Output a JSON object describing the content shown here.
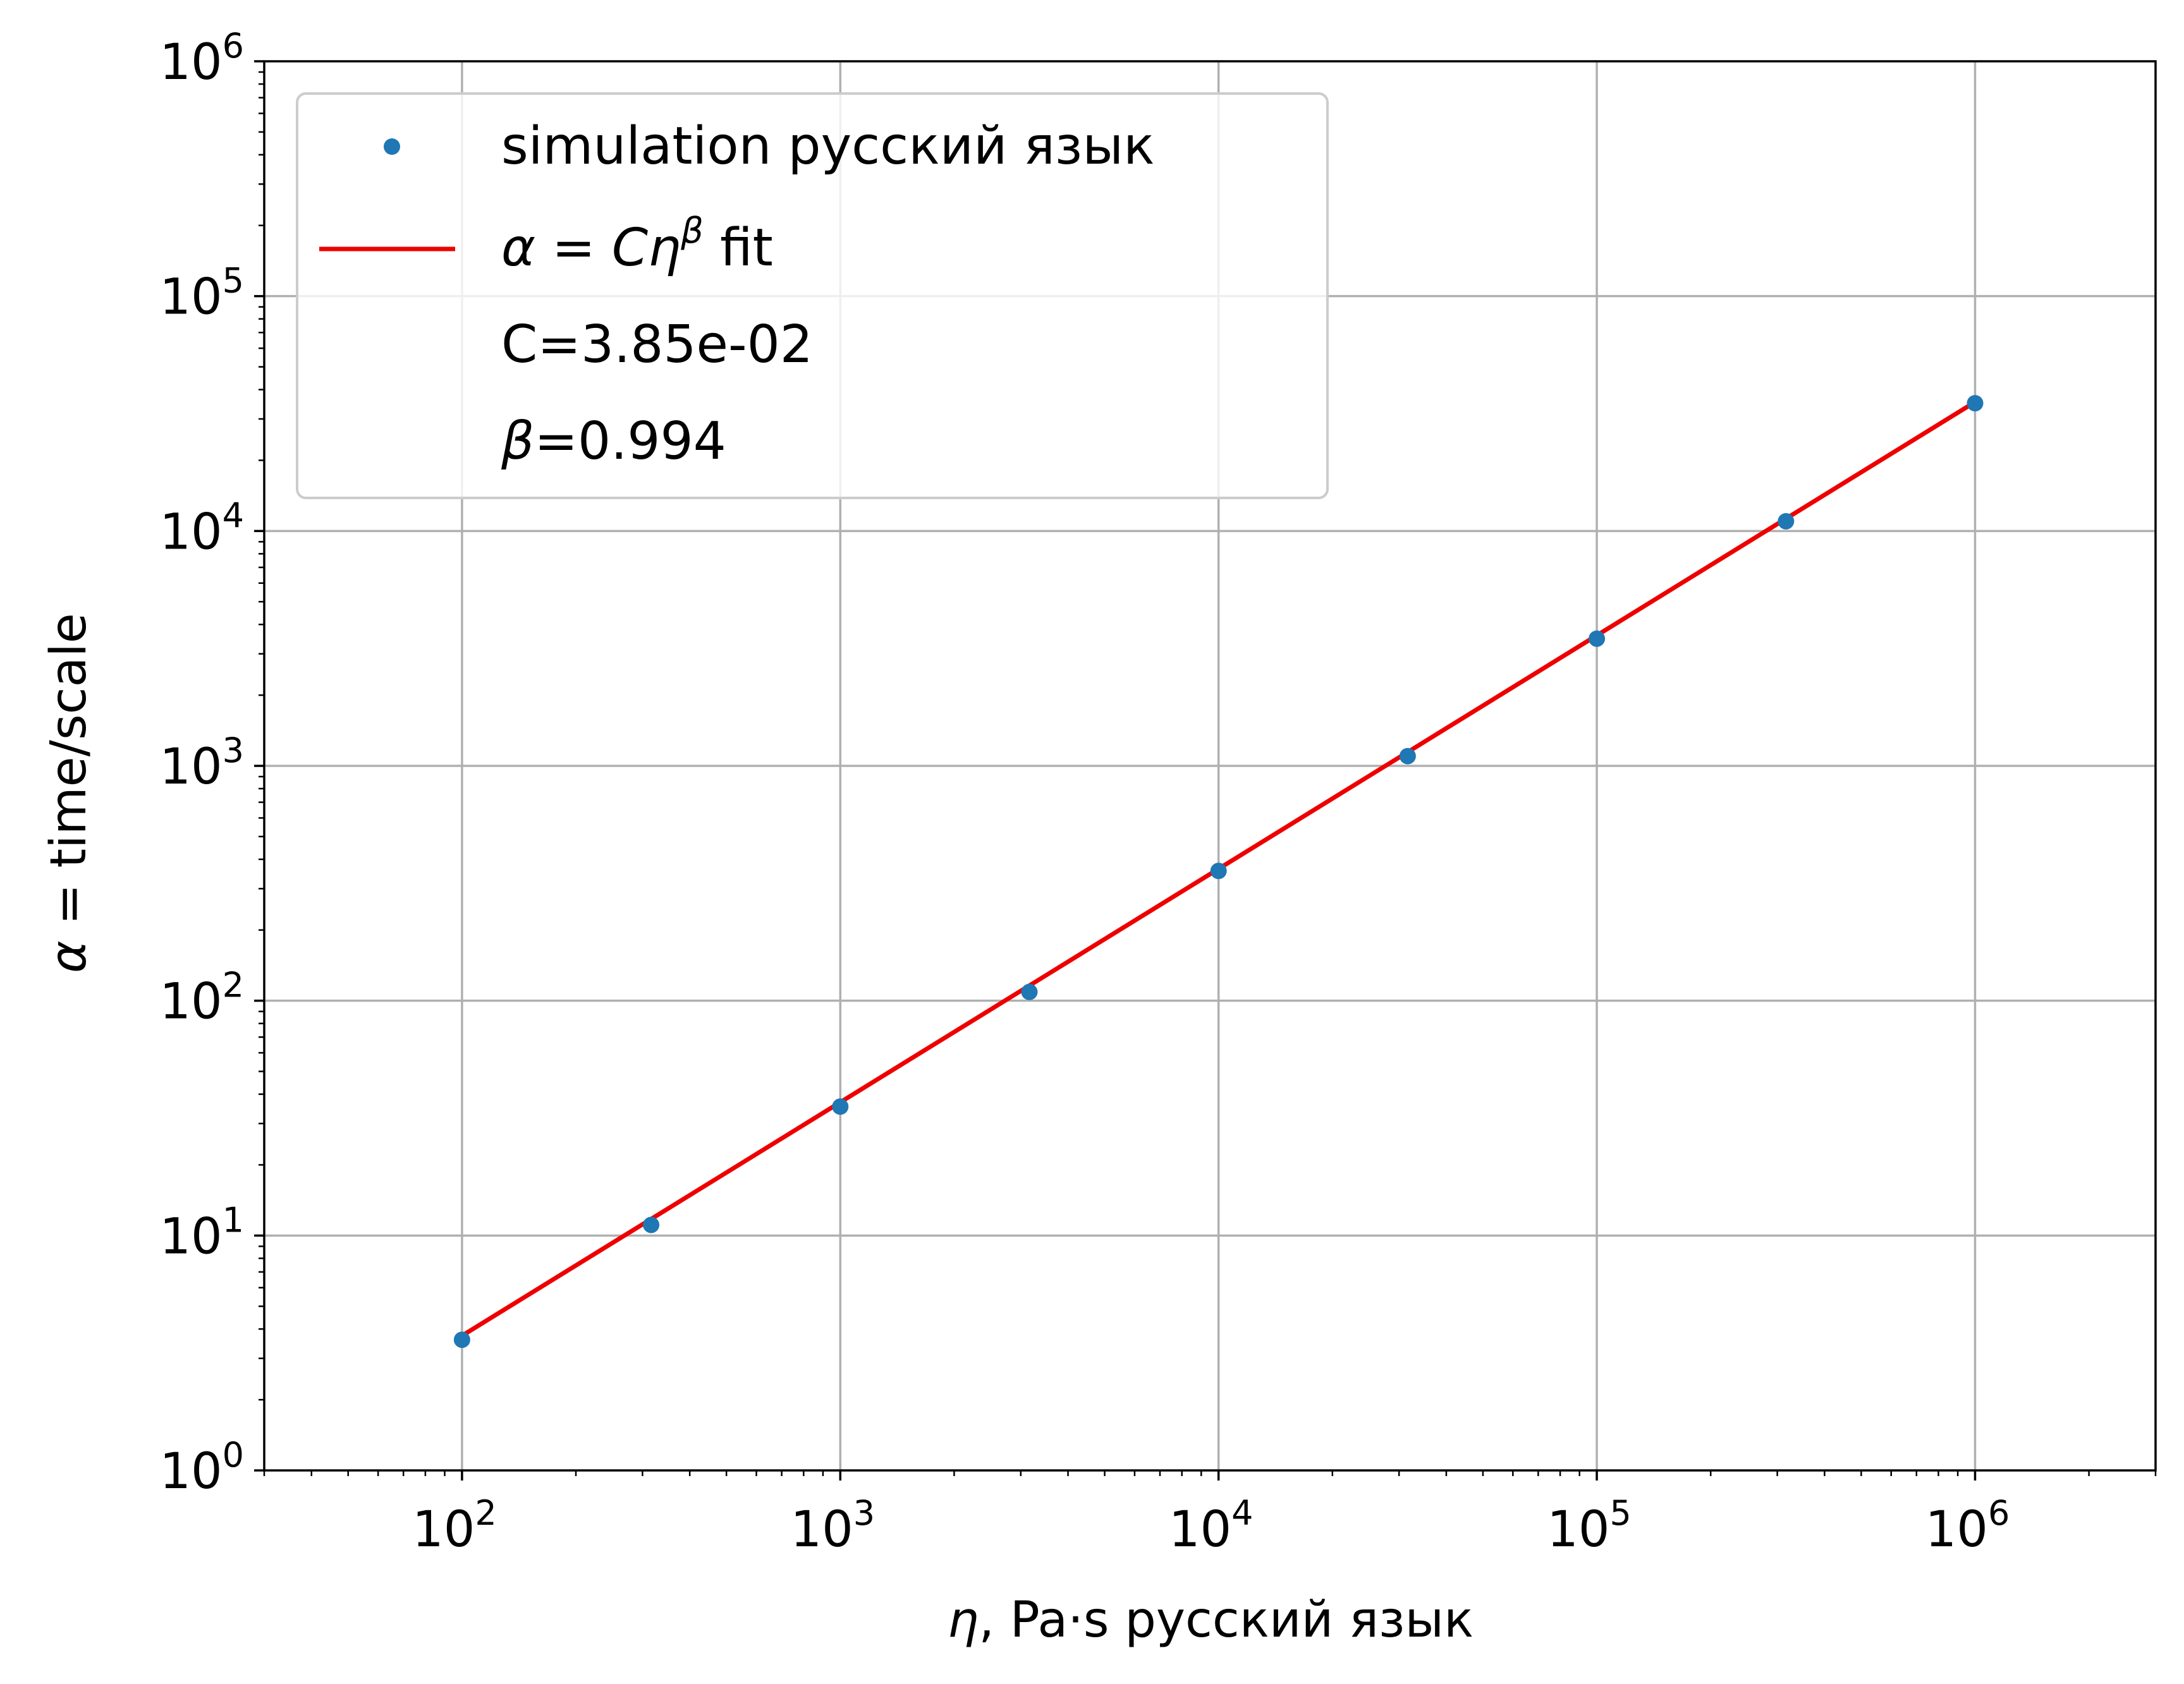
{
  "chart_data": {
    "type": "scatter",
    "xscale": "log",
    "yscale": "log",
    "xlim": [
      30,
      3000000
    ],
    "ylim": [
      1,
      1000000
    ],
    "xlabel": {
      "symbol": "η",
      "rest": ", Pa·s русский язык"
    },
    "ylabel": {
      "symbol": "α",
      "rest": " = time/scale"
    },
    "grid": true,
    "legend_position": "upper-left",
    "x_ticks": [
      {
        "base": "10",
        "exp": "2",
        "value": 100
      },
      {
        "base": "10",
        "exp": "3",
        "value": 1000
      },
      {
        "base": "10",
        "exp": "4",
        "value": 10000
      },
      {
        "base": "10",
        "exp": "5",
        "value": 100000
      },
      {
        "base": "10",
        "exp": "6",
        "value": 1000000
      }
    ],
    "y_ticks": [
      {
        "base": "10",
        "exp": "0",
        "value": 1
      },
      {
        "base": "10",
        "exp": "1",
        "value": 10
      },
      {
        "base": "10",
        "exp": "2",
        "value": 100
      },
      {
        "base": "10",
        "exp": "3",
        "value": 1000
      },
      {
        "base": "10",
        "exp": "4",
        "value": 10000
      },
      {
        "base": "10",
        "exp": "5",
        "value": 100000
      },
      {
        "base": "10",
        "exp": "6",
        "value": 1000000
      }
    ],
    "series": [
      {
        "name": "simulation русский язык",
        "kind": "points",
        "color": "#1f77b4",
        "x": [
          100,
          316.2,
          1000,
          3162,
          10000,
          31623,
          100000,
          316228,
          1000000
        ],
        "y": [
          3.6,
          11.1,
          35.4,
          109,
          357,
          1100,
          3480,
          11000,
          35000
        ]
      },
      {
        "name_parts": {
          "alpha": "α",
          "eq": " = ",
          "c": "C",
          "eta": "η",
          "beta": "β",
          "fit": " fit"
        },
        "kind": "line",
        "color": "#ee0000",
        "C": 0.0385,
        "beta": 0.994,
        "x_range": [
          100,
          1000000
        ]
      }
    ],
    "legend_extra": [
      {
        "text": "C=3.85e-02"
      },
      {
        "symbol": "β",
        "rest": "=0.994"
      }
    ]
  }
}
